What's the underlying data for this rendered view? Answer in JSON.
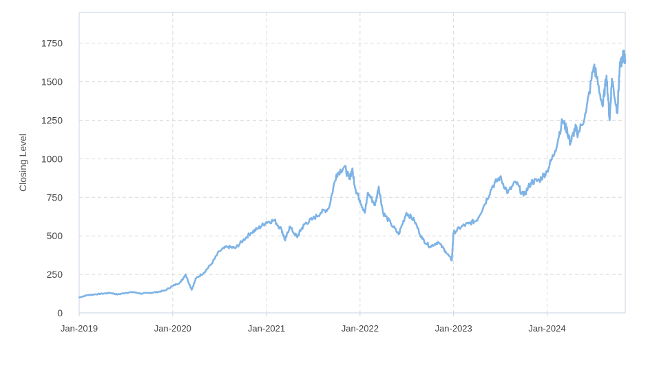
{
  "chart_data": {
    "type": "line",
    "title": "",
    "xlabel": "",
    "ylabel": "Closing Level",
    "x_range": [
      "2019-01-01",
      "2024-11-01"
    ],
    "ylim": [
      0,
      1950
    ],
    "y_ticks": [
      0,
      250,
      500,
      750,
      1000,
      1250,
      1500,
      1750
    ],
    "y_tick_labels": [
      "0",
      "250",
      "500",
      "750",
      "1000",
      "1250",
      "1500",
      "1750"
    ],
    "x_ticks": [
      "2019-01-01",
      "2020-01-01",
      "2021-01-01",
      "2022-01-01",
      "2023-01-01",
      "2024-01-01"
    ],
    "x_tick_labels": [
      "Jan-2019",
      "Jan-2020",
      "Jan-2021",
      "Jan-2022",
      "Jan-2023",
      "Jan-2024"
    ],
    "grid": true,
    "legend": "none",
    "colors": {
      "line": "#7eb3e6",
      "grid": "#d9d9d9",
      "frame": "#c8d3e3"
    },
    "series": [
      {
        "x": [
          "2019-01-01",
          "2019-02-01",
          "2019-03-01",
          "2019-04-01",
          "2019-05-01",
          "2019-06-01",
          "2019-07-01",
          "2019-08-01",
          "2019-09-01",
          "2019-10-01",
          "2019-11-01",
          "2019-12-01",
          "2020-01-01",
          "2020-02-01",
          "2020-02-20",
          "2020-03-15",
          "2020-04-01",
          "2020-05-01",
          "2020-06-01",
          "2020-07-01",
          "2020-08-01",
          "2020-09-01",
          "2020-10-01",
          "2020-11-01",
          "2020-12-01",
          "2021-01-01",
          "2021-02-01",
          "2021-03-01",
          "2021-03-15",
          "2021-04-01",
          "2021-05-01",
          "2021-05-15",
          "2021-06-01",
          "2021-07-01",
          "2021-08-01",
          "2021-09-01",
          "2021-10-01",
          "2021-11-01",
          "2021-11-20",
          "2021-12-01",
          "2021-12-15",
          "2022-01-01",
          "2022-01-20",
          "2022-02-01",
          "2022-03-01",
          "2022-03-15",
          "2022-04-01",
          "2022-05-01",
          "2022-06-01",
          "2022-07-01",
          "2022-08-01",
          "2022-09-01",
          "2022-10-01",
          "2022-11-01",
          "2022-12-01",
          "2022-12-25",
          "2023-01-01",
          "2023-02-01",
          "2023-03-01",
          "2023-04-01",
          "2023-05-01",
          "2023-06-01",
          "2023-07-01",
          "2023-08-01",
          "2023-09-01",
          "2023-10-01",
          "2023-11-01",
          "2023-12-01",
          "2024-01-01",
          "2024-02-01",
          "2024-03-01",
          "2024-03-20",
          "2024-04-01",
          "2024-04-20",
          "2024-05-01",
          "2024-06-01",
          "2024-07-01",
          "2024-07-10",
          "2024-08-05",
          "2024-08-20",
          "2024-09-01",
          "2024-09-10",
          "2024-10-01",
          "2024-10-10",
          "2024-10-25",
          "2024-11-01"
        ],
        "values": [
          100,
          115,
          120,
          125,
          130,
          120,
          130,
          135,
          125,
          130,
          135,
          145,
          175,
          200,
          250,
          150,
          225,
          260,
          320,
          400,
          430,
          420,
          470,
          520,
          550,
          590,
          600,
          540,
          470,
          560,
          490,
          540,
          580,
          610,
          650,
          680,
          900,
          950,
          870,
          930,
          800,
          730,
          650,
          780,
          700,
          820,
          650,
          580,
          510,
          650,
          600,
          480,
          430,
          460,
          400,
          340,
          520,
          560,
          580,
          600,
          700,
          820,
          880,
          780,
          850,
          760,
          850,
          860,
          920,
          1050,
          1250,
          1180,
          1100,
          1200,
          1160,
          1300,
          1600,
          1550,
          1340,
          1540,
          1250,
          1520,
          1300,
          1580,
          1680,
          1640
        ]
      }
    ]
  }
}
